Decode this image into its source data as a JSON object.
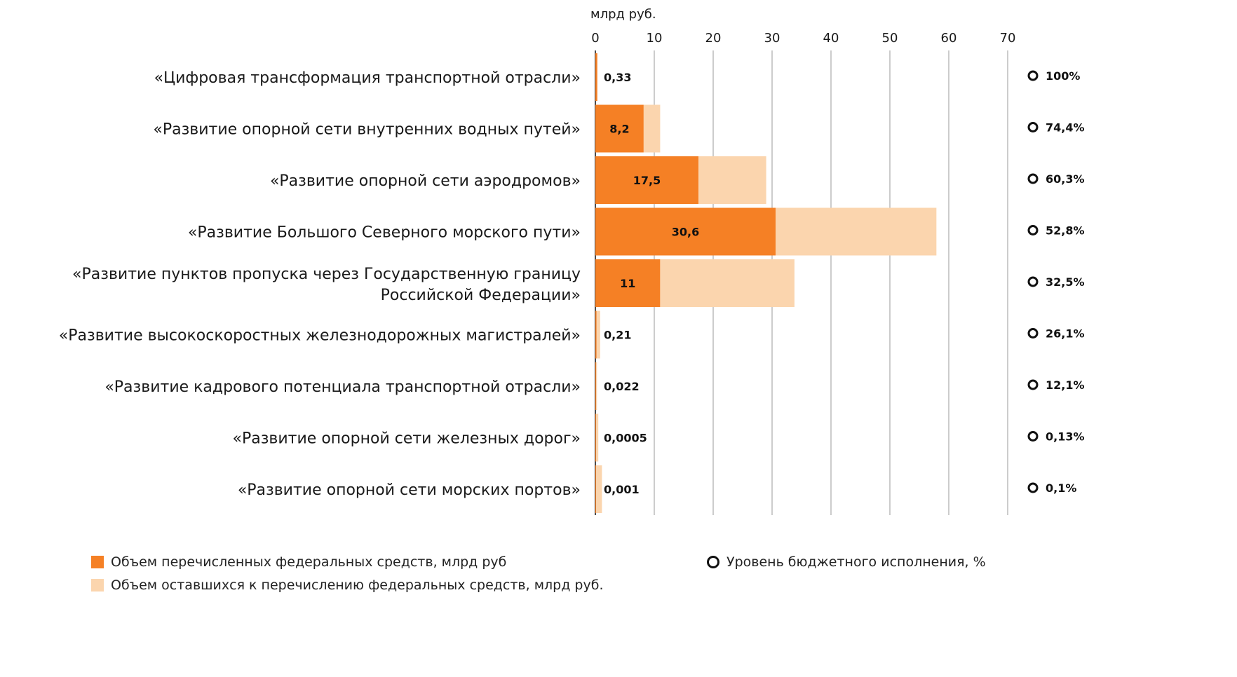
{
  "chart_data": {
    "type": "bar",
    "orientation": "horizontal",
    "stacked": true,
    "unit_label": "млрд руб.",
    "xlim": [
      0,
      70
    ],
    "xticks": [
      "0",
      "10",
      "20",
      "30",
      "40",
      "50",
      "60",
      "70"
    ],
    "grid": true,
    "categories": [
      [
        "«Цифровая трансформация транспортной отрасли»"
      ],
      [
        "«Развитие опорной сети внутренних водных путей»"
      ],
      [
        "«Развитие опорной сети аэродромов»"
      ],
      [
        "«Развитие Большого Северного морского пути»"
      ],
      [
        "«Развитие пунктов пропуска через Государственную границу",
        "Российской Федерации»"
      ],
      [
        "«Развитие высокоскоростных железнодорожных магистралей»"
      ],
      [
        "«Развитие кадрового потенциала транспортной отрасли»"
      ],
      [
        "«Развитие опорной сети железных дорог»"
      ],
      [
        "«Развитие опорной сети морских портов»"
      ]
    ],
    "series": [
      {
        "name": "Объем перечисленных федеральных средств, млрд руб",
        "color": "#F58025",
        "values": [
          0.33,
          8.2,
          17.5,
          30.6,
          11,
          0.21,
          0.022,
          0.0005,
          0.001
        ],
        "labels": [
          "0,33",
          "8,2",
          "17,5",
          "30,6",
          "11",
          "0,21",
          "0,022",
          "0,0005",
          "0,001"
        ]
      },
      {
        "name": "Объем оставшихся к перечислению федеральных средств, млрд руб.",
        "color": "#FBD5AE",
        "values": [
          0.0,
          2.8,
          11.5,
          27.3,
          22.8,
          0.6,
          0.16,
          0.38,
          1.0
        ]
      },
      {
        "name": "Уровень бюджетного исполнения, %",
        "marker": "ring",
        "labels": [
          "100%",
          "74,4%",
          "60,3%",
          "52,8%",
          "32,5%",
          "26,1%",
          "12,1%",
          "0,13%",
          "0,1%"
        ]
      }
    ],
    "legend_position": "bottom"
  }
}
